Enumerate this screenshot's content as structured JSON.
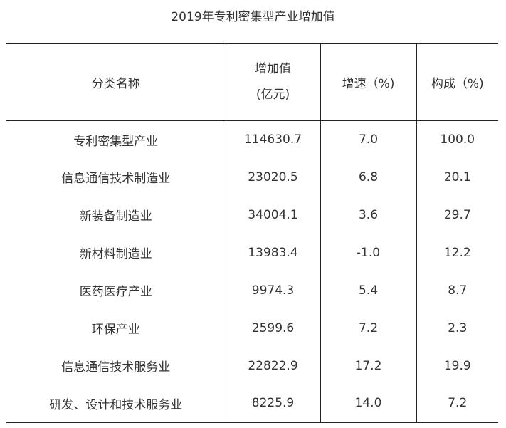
{
  "title": "2019年专利密集型产业增加值",
  "chart_data": {
    "type": "table",
    "title": "2019年专利密集型产业增加值",
    "columns": [
      {
        "label": "分类名称"
      },
      {
        "label_line1": "增加值",
        "label_line2": "(亿元)"
      },
      {
        "label": "增速（%)"
      },
      {
        "label": "构成（%)"
      }
    ],
    "rows": [
      {
        "name": "专利密集型产业",
        "value": "114630.7",
        "growth": "7.0",
        "share": "100.0"
      },
      {
        "name": "信息通信技术制造业",
        "value": "23020.5",
        "growth": "6.8",
        "share": "20.1"
      },
      {
        "name": "新装备制造业",
        "value": "34004.1",
        "growth": "3.6",
        "share": "29.7"
      },
      {
        "name": "新材料制造业",
        "value": "13983.4",
        "growth": "-1.0",
        "share": "12.2"
      },
      {
        "name": "医药医疗产业",
        "value": "9974.3",
        "growth": "5.4",
        "share": "8.7"
      },
      {
        "name": "环保产业",
        "value": "2599.6",
        "growth": "7.2",
        "share": "2.3"
      },
      {
        "name": "信息通信技术服务业",
        "value": "22822.9",
        "growth": "17.2",
        "share": "19.9"
      },
      {
        "name": "研发、设计和技术服务业",
        "value": "8225.9",
        "growth": "14.0",
        "share": "7.2"
      }
    ]
  }
}
